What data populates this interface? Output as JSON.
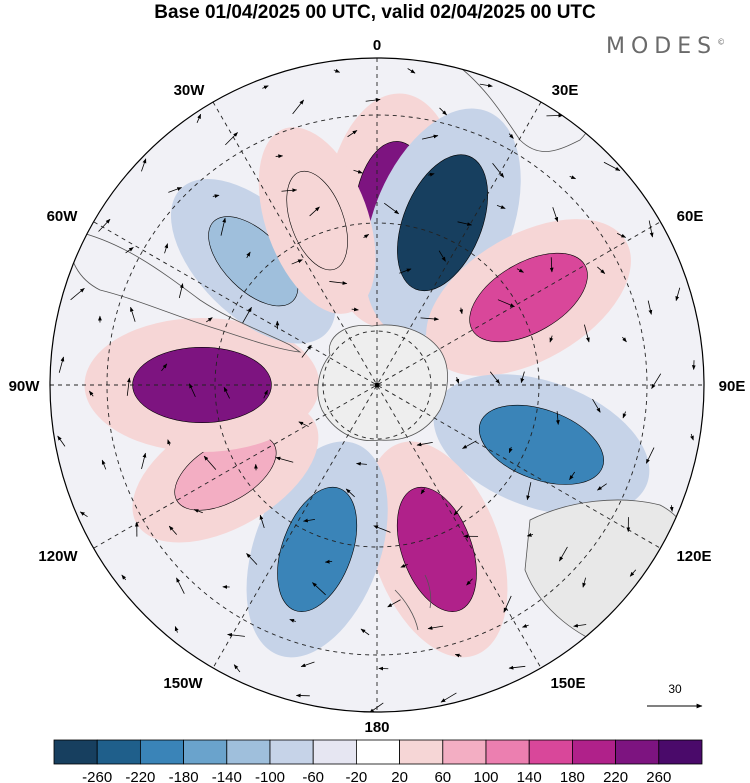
{
  "title": "Base 01/04/2025 00 UTC, valid 02/04/2025 00 UTC",
  "brand": "MODES",
  "brand_mark": "©",
  "longitude_labels": {
    "top": "0",
    "bottom": "180",
    "left": "90W",
    "right": "90E",
    "lon30w": "30W",
    "lon30e": "30E",
    "lon60w": "60W",
    "lon60e": "60E",
    "lon120w": "120W",
    "lon120e": "120E",
    "lon150w": "150W",
    "lon150e": "150E"
  },
  "reference_vector": {
    "label": "30"
  },
  "colorbar": {
    "ticks": [
      "-260",
      "-220",
      "-180",
      "-140",
      "-100",
      "-60",
      "-20",
      "20",
      "60",
      "100",
      "140",
      "180",
      "220",
      "260"
    ],
    "colors": [
      "#173f5f",
      "#1f5f8b",
      "#3a84b8",
      "#6aa3cc",
      "#9fbfdc",
      "#c6d3e8",
      "#e6e6f2",
      "#ffffff",
      "#f6d6d6",
      "#f3aec3",
      "#ec7fb0",
      "#d9479a",
      "#b0218a",
      "#7d1480",
      "#4a0a6a"
    ]
  },
  "anomaly_regions": [
    {
      "lon": 5,
      "level": 220,
      "color": "#7d1480"
    },
    {
      "lon": 22,
      "level": -240,
      "color": "#173f5f"
    },
    {
      "lon": 60,
      "level": 180,
      "color": "#d9479a"
    },
    {
      "lon": 110,
      "level": -180,
      "color": "#3a84b8"
    },
    {
      "lon": 160,
      "level": 180,
      "color": "#b0218a"
    },
    {
      "lon": 200,
      "level": -180,
      "color": "#3a84b8"
    },
    {
      "lon": 240,
      "level": 100,
      "color": "#f3aec3"
    },
    {
      "lon": 270,
      "level": 220,
      "color": "#7d1480"
    },
    {
      "lon": 315,
      "level": -100,
      "color": "#9fbfdc"
    },
    {
      "lon": 340,
      "level": 60,
      "color": "#f6d6d6"
    }
  ]
}
